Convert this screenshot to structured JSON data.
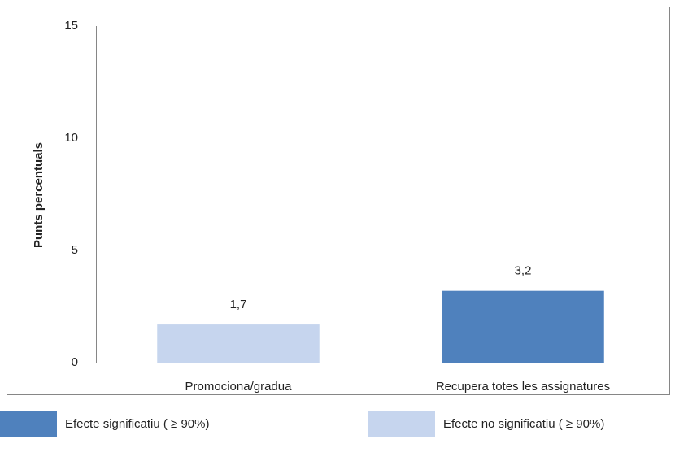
{
  "chart_data": {
    "type": "bar",
    "y_label": "Punts percentuals",
    "categories": [
      "Promociona/gradua",
      "Recupera totes les assignatures"
    ],
    "values": [
      1.7,
      3.2
    ],
    "value_labels": [
      "1,7",
      "3,2"
    ],
    "colors": [
      "#c6d5ee",
      "#4f81bd"
    ],
    "ylim": [
      0,
      15
    ],
    "yticks": [
      0,
      5,
      10,
      15
    ],
    "legend": [
      {
        "name": "Efecte significatiu ( ≥ 90%)",
        "color": "#4f81bd"
      },
      {
        "name": "Efecte no significatiu ( ≥ 90%)",
        "color": "#c6d5ee"
      }
    ],
    "legend_position": "bottom"
  }
}
